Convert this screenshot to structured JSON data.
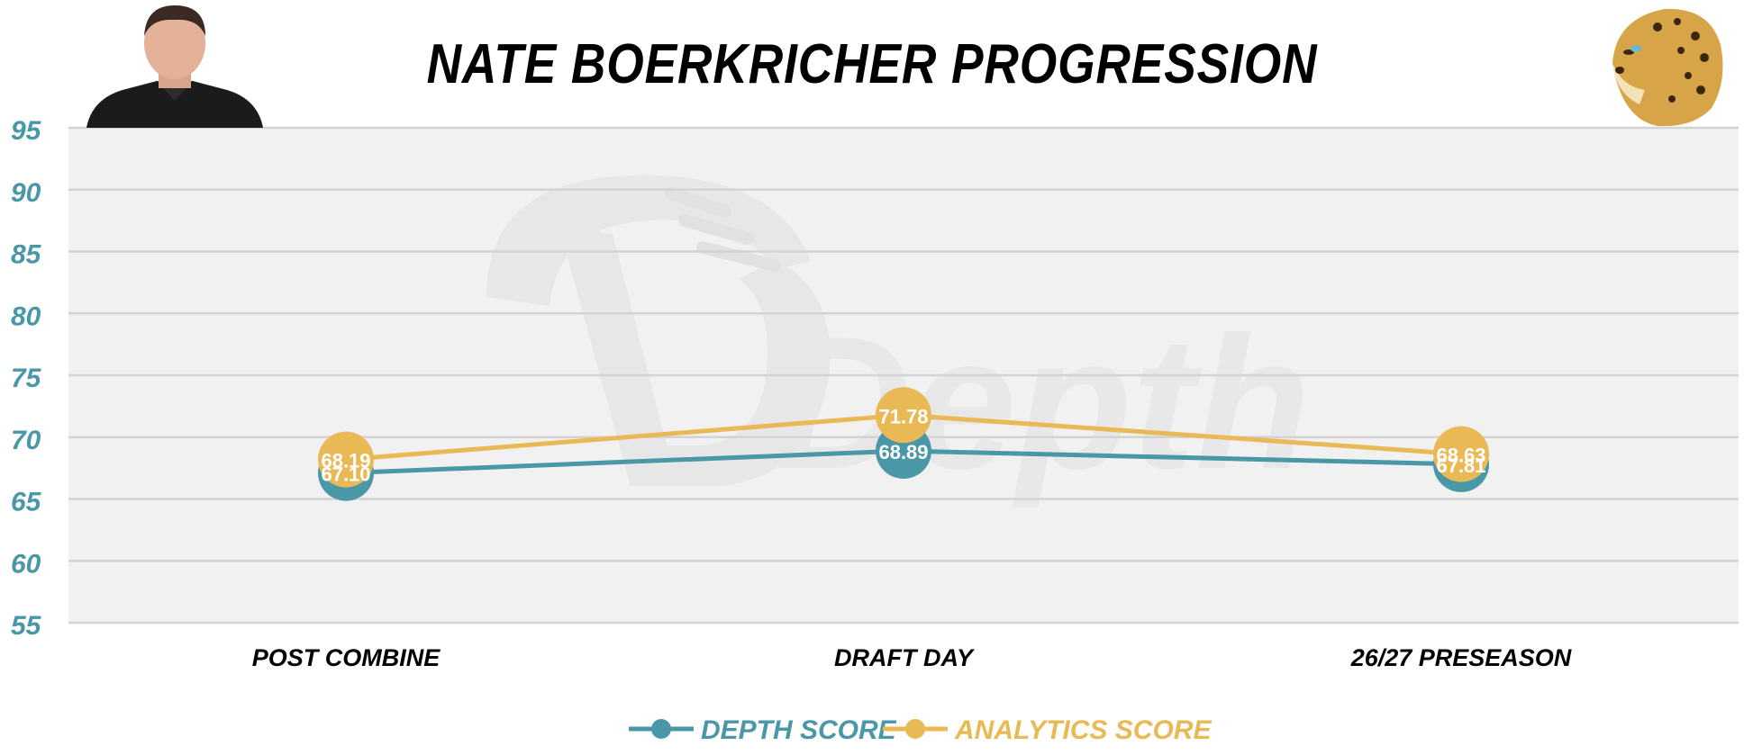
{
  "colors": {
    "depth": "#4a97a8",
    "analytics": "#e9b955",
    "plot_bg": "#f1f1f1",
    "grid": "#d3d3d3",
    "axis_text": "#4a97a8"
  },
  "header": {
    "avatar_icon": "player-headshot",
    "logo_icon": "jaguar-head-logo",
    "watermark": "Depth"
  },
  "chart_data": {
    "type": "line",
    "title": "NATE BOERKRICHER PROGRESSION",
    "categories": [
      "POST COMBINE",
      "DRAFT DAY",
      "26/27 PRESEASON"
    ],
    "series": [
      {
        "name": "DEPTH SCORE",
        "values": [
          67.1,
          68.89,
          67.81
        ],
        "labels": [
          "67.10",
          "68.89",
          "67.81"
        ]
      },
      {
        "name": "ANALYTICS SCORE",
        "values": [
          68.19,
          71.78,
          68.63
        ],
        "labels": [
          "68.19",
          "71.78",
          "68.63"
        ]
      }
    ],
    "ylim": [
      55,
      95
    ],
    "yticks": [
      "95",
      "90",
      "85",
      "80",
      "75",
      "70",
      "65",
      "60",
      "55"
    ],
    "grid": true,
    "legend": "bottom-center",
    "xlabel": "",
    "ylabel": ""
  }
}
